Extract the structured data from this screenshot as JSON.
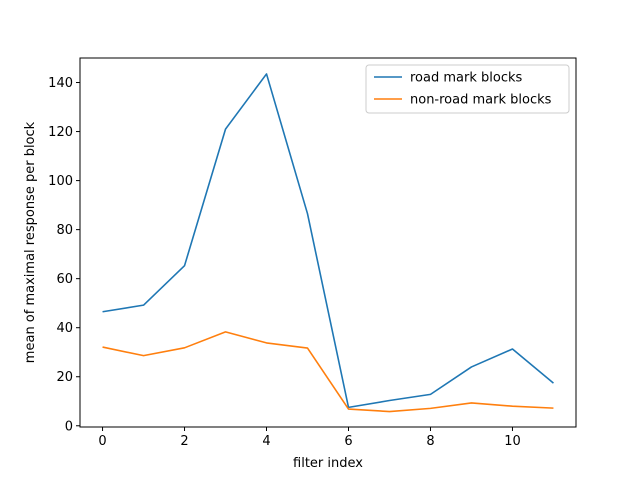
{
  "chart_data": {
    "type": "line",
    "xlabel": "filter index",
    "ylabel": "mean of maximal response per block",
    "xlim": [
      -0.55,
      11.55
    ],
    "ylim": [
      -0.5,
      150
    ],
    "xticks": [
      0,
      2,
      4,
      6,
      8,
      10
    ],
    "yticks": [
      0,
      20,
      40,
      60,
      80,
      100,
      120,
      140
    ],
    "grid": false,
    "legend_position": "top-right",
    "x": [
      0,
      1,
      2,
      3,
      4,
      5,
      6,
      7,
      8,
      9,
      10,
      11
    ],
    "series": [
      {
        "name": "road mark blocks",
        "color": "#1f77b4",
        "values": [
          46.5,
          49.2,
          65.3,
          121.0,
          143.5,
          86.5,
          7.5,
          10.3,
          12.8,
          24.0,
          31.3,
          17.4
        ]
      },
      {
        "name": "non-road mark blocks",
        "color": "#ff7f0e",
        "values": [
          32.1,
          28.6,
          31.8,
          38.3,
          33.8,
          31.7,
          6.8,
          5.8,
          7.1,
          9.3,
          8.0,
          7.2
        ]
      }
    ]
  }
}
